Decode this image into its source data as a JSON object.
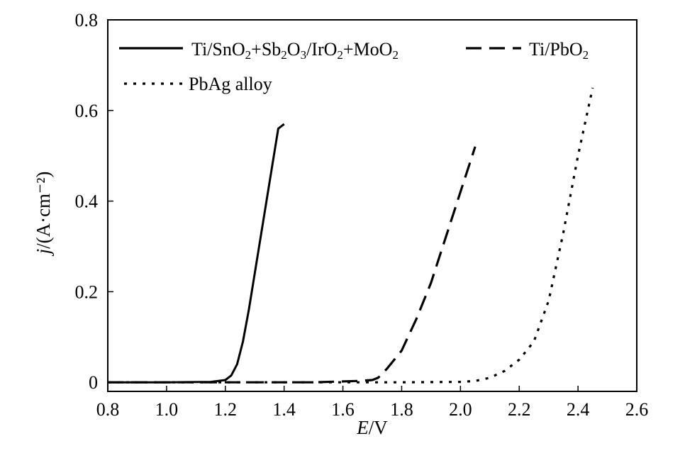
{
  "chart_data": {
    "type": "line",
    "xlabel": "E/V",
    "ylabel": "j/(A·cm⁻²)",
    "xlim": [
      0.8,
      2.6
    ],
    "ylim": [
      -0.02,
      0.8
    ],
    "xticks": [
      "0.8",
      "1.0",
      "1.2",
      "1.4",
      "1.6",
      "1.8",
      "2.0",
      "2.2",
      "2.4",
      "2.6"
    ],
    "yticks": [
      "0",
      "0.2",
      "0.4",
      "0.6",
      "0.8"
    ],
    "grid": false,
    "legend_placement": "top",
    "series": [
      {
        "name": "Ti/SnO2+Sb2O3/IrO2+MoO2",
        "style": "solid",
        "x": [
          0.8,
          1.0,
          1.15,
          1.2,
          1.22,
          1.24,
          1.26,
          1.28,
          1.3,
          1.32,
          1.34,
          1.36,
          1.38,
          1.39,
          1.4
        ],
        "y": [
          0.0,
          0.0,
          0.001,
          0.005,
          0.015,
          0.04,
          0.09,
          0.16,
          0.24,
          0.32,
          0.4,
          0.48,
          0.56,
          0.565,
          0.57
        ]
      },
      {
        "name": "Ti/PbO2",
        "style": "dashed",
        "x": [
          0.8,
          1.2,
          1.5,
          1.65,
          1.7,
          1.72,
          1.75,
          1.8,
          1.85,
          1.9,
          1.95,
          2.0,
          2.05
        ],
        "y": [
          0.0,
          0.0,
          0.0,
          0.003,
          0.005,
          0.01,
          0.03,
          0.07,
          0.14,
          0.22,
          0.32,
          0.42,
          0.52
        ]
      },
      {
        "name": "PbAg alloy",
        "style": "dotted",
        "x": [
          0.8,
          1.5,
          1.8,
          2.0,
          2.05,
          2.1,
          2.15,
          2.2,
          2.25,
          2.3,
          2.35,
          2.4,
          2.45
        ],
        "y": [
          0.0,
          0.0,
          0.0,
          0.001,
          0.003,
          0.01,
          0.025,
          0.05,
          0.09,
          0.18,
          0.33,
          0.5,
          0.65
        ]
      }
    ]
  },
  "legend": {
    "entries": [
      {
        "style": "solid",
        "parts": [
          {
            "t": "Ti/SnO"
          },
          {
            "t": "2",
            "sub": true
          },
          {
            "t": "+Sb"
          },
          {
            "t": "2",
            "sub": true
          },
          {
            "t": "O"
          },
          {
            "t": "3",
            "sub": true
          },
          {
            "t": "/IrO"
          },
          {
            "t": "2",
            "sub": true
          },
          {
            "t": "+MoO"
          },
          {
            "t": "2",
            "sub": true
          }
        ]
      },
      {
        "style": "dashed",
        "parts": [
          {
            "t": "Ti/PbO"
          },
          {
            "t": "2",
            "sub": true
          }
        ]
      },
      {
        "style": "dotted",
        "parts": [
          {
            "t": "PbAg alloy"
          }
        ]
      }
    ]
  }
}
